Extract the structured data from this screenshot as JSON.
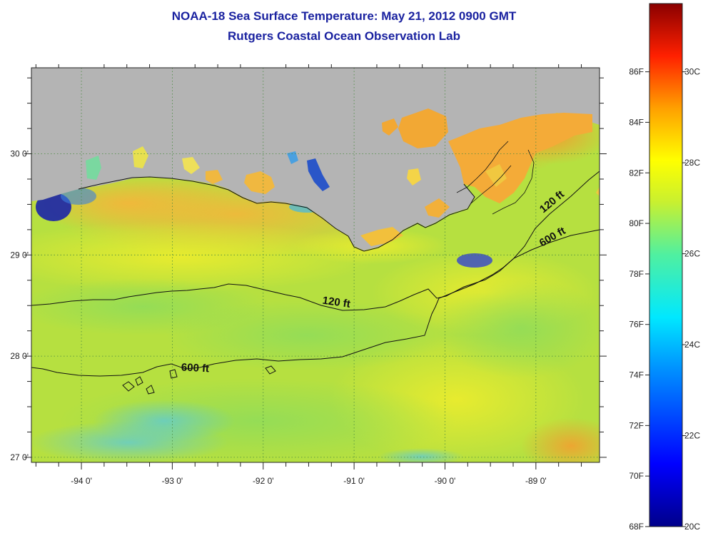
{
  "title": "NOAA-18 Sea Surface Temperature:  May 21, 2012 0900 GMT",
  "subtitle": "Rutgers Coastal Ocean Observation Lab",
  "colors": {
    "land": "#b4b4b4",
    "shelf_water": "#b6e040",
    "coastal_warm": "#f2c13a",
    "contour": "#111111",
    "title": "#1a22a0"
  },
  "chart_data": {
    "type": "heatmap",
    "variable": "sea surface temperature",
    "xlim": [
      -94.55,
      -88.3
    ],
    "ylim": [
      26.95,
      30.85
    ],
    "x_ticks": [
      {
        "value": -94,
        "label": "-94 0'"
      },
      {
        "value": -93,
        "label": "-93 0'"
      },
      {
        "value": -92,
        "label": "-92 0'"
      },
      {
        "value": -91,
        "label": "-91 0'"
      },
      {
        "value": -90,
        "label": "-90 0'"
      },
      {
        "value": -89,
        "label": "-89 0'"
      }
    ],
    "y_ticks": [
      {
        "value": 27,
        "label": "27 0'"
      },
      {
        "value": 28,
        "label": "28 0'"
      },
      {
        "value": 29,
        "label": "29 0'"
      },
      {
        "value": 30,
        "label": "30 0'"
      }
    ],
    "grid": "dotted",
    "contours": [
      {
        "label": "120 ft",
        "label_lon_lat": [
          -91.2,
          28.5
        ]
      },
      {
        "label": "600 ft",
        "label_lon_lat": [
          -92.75,
          27.85
        ]
      },
      {
        "label": "120 ft",
        "label_lon_lat": [
          -88.8,
          29.5
        ]
      },
      {
        "label": "600 ft",
        "label_lon_lat": [
          -88.8,
          29.15
        ]
      }
    ],
    "colorbar": {
      "f_labels": [
        "86F",
        "84F",
        "82F",
        "80F",
        "78F",
        "76F",
        "74F",
        "72F",
        "70F",
        "68F"
      ],
      "f_values": [
        86,
        84,
        82,
        80,
        78,
        76,
        74,
        72,
        70,
        68
      ],
      "c_labels": [
        "30C",
        "28C",
        "26C",
        "24C",
        "22C",
        "20C"
      ],
      "c_values": [
        30,
        28,
        26,
        24,
        22,
        20
      ],
      "range_c": [
        20,
        31.5
      ]
    }
  }
}
